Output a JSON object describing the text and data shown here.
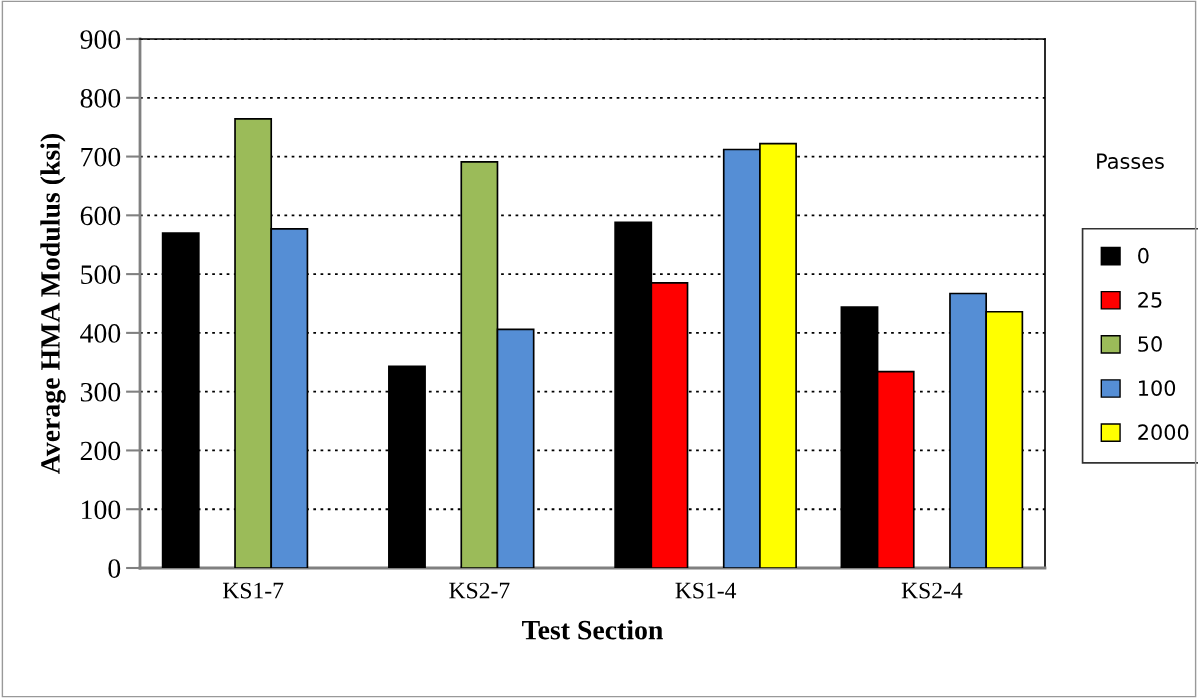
{
  "chart_data": {
    "type": "bar",
    "xlabel": "Test Section",
    "ylabel": "Average HMA Modulus (ksi)",
    "legend_title": "Passes",
    "categories": [
      "KS1-7",
      "KS2-7",
      "KS1-4",
      "KS2-4"
    ],
    "series": [
      {
        "name": "0",
        "color": "#000000",
        "values": [
          570,
          343,
          588,
          444
        ]
      },
      {
        "name": "25",
        "color": "#ff0000",
        "values": [
          null,
          null,
          485,
          334
        ]
      },
      {
        "name": "50",
        "color": "#9bbb59",
        "values": [
          764,
          691,
          null,
          null
        ]
      },
      {
        "name": "100",
        "color": "#558ed5",
        "values": [
          577,
          406,
          712,
          467
        ]
      },
      {
        "name": "2000",
        "color": "#ffff00",
        "values": [
          null,
          null,
          722,
          436
        ]
      }
    ],
    "ylim": [
      0,
      900
    ],
    "yticks": [
      0,
      100,
      200,
      300,
      400,
      500,
      600,
      700,
      800,
      900
    ],
    "grid": "y",
    "legend": "right"
  }
}
